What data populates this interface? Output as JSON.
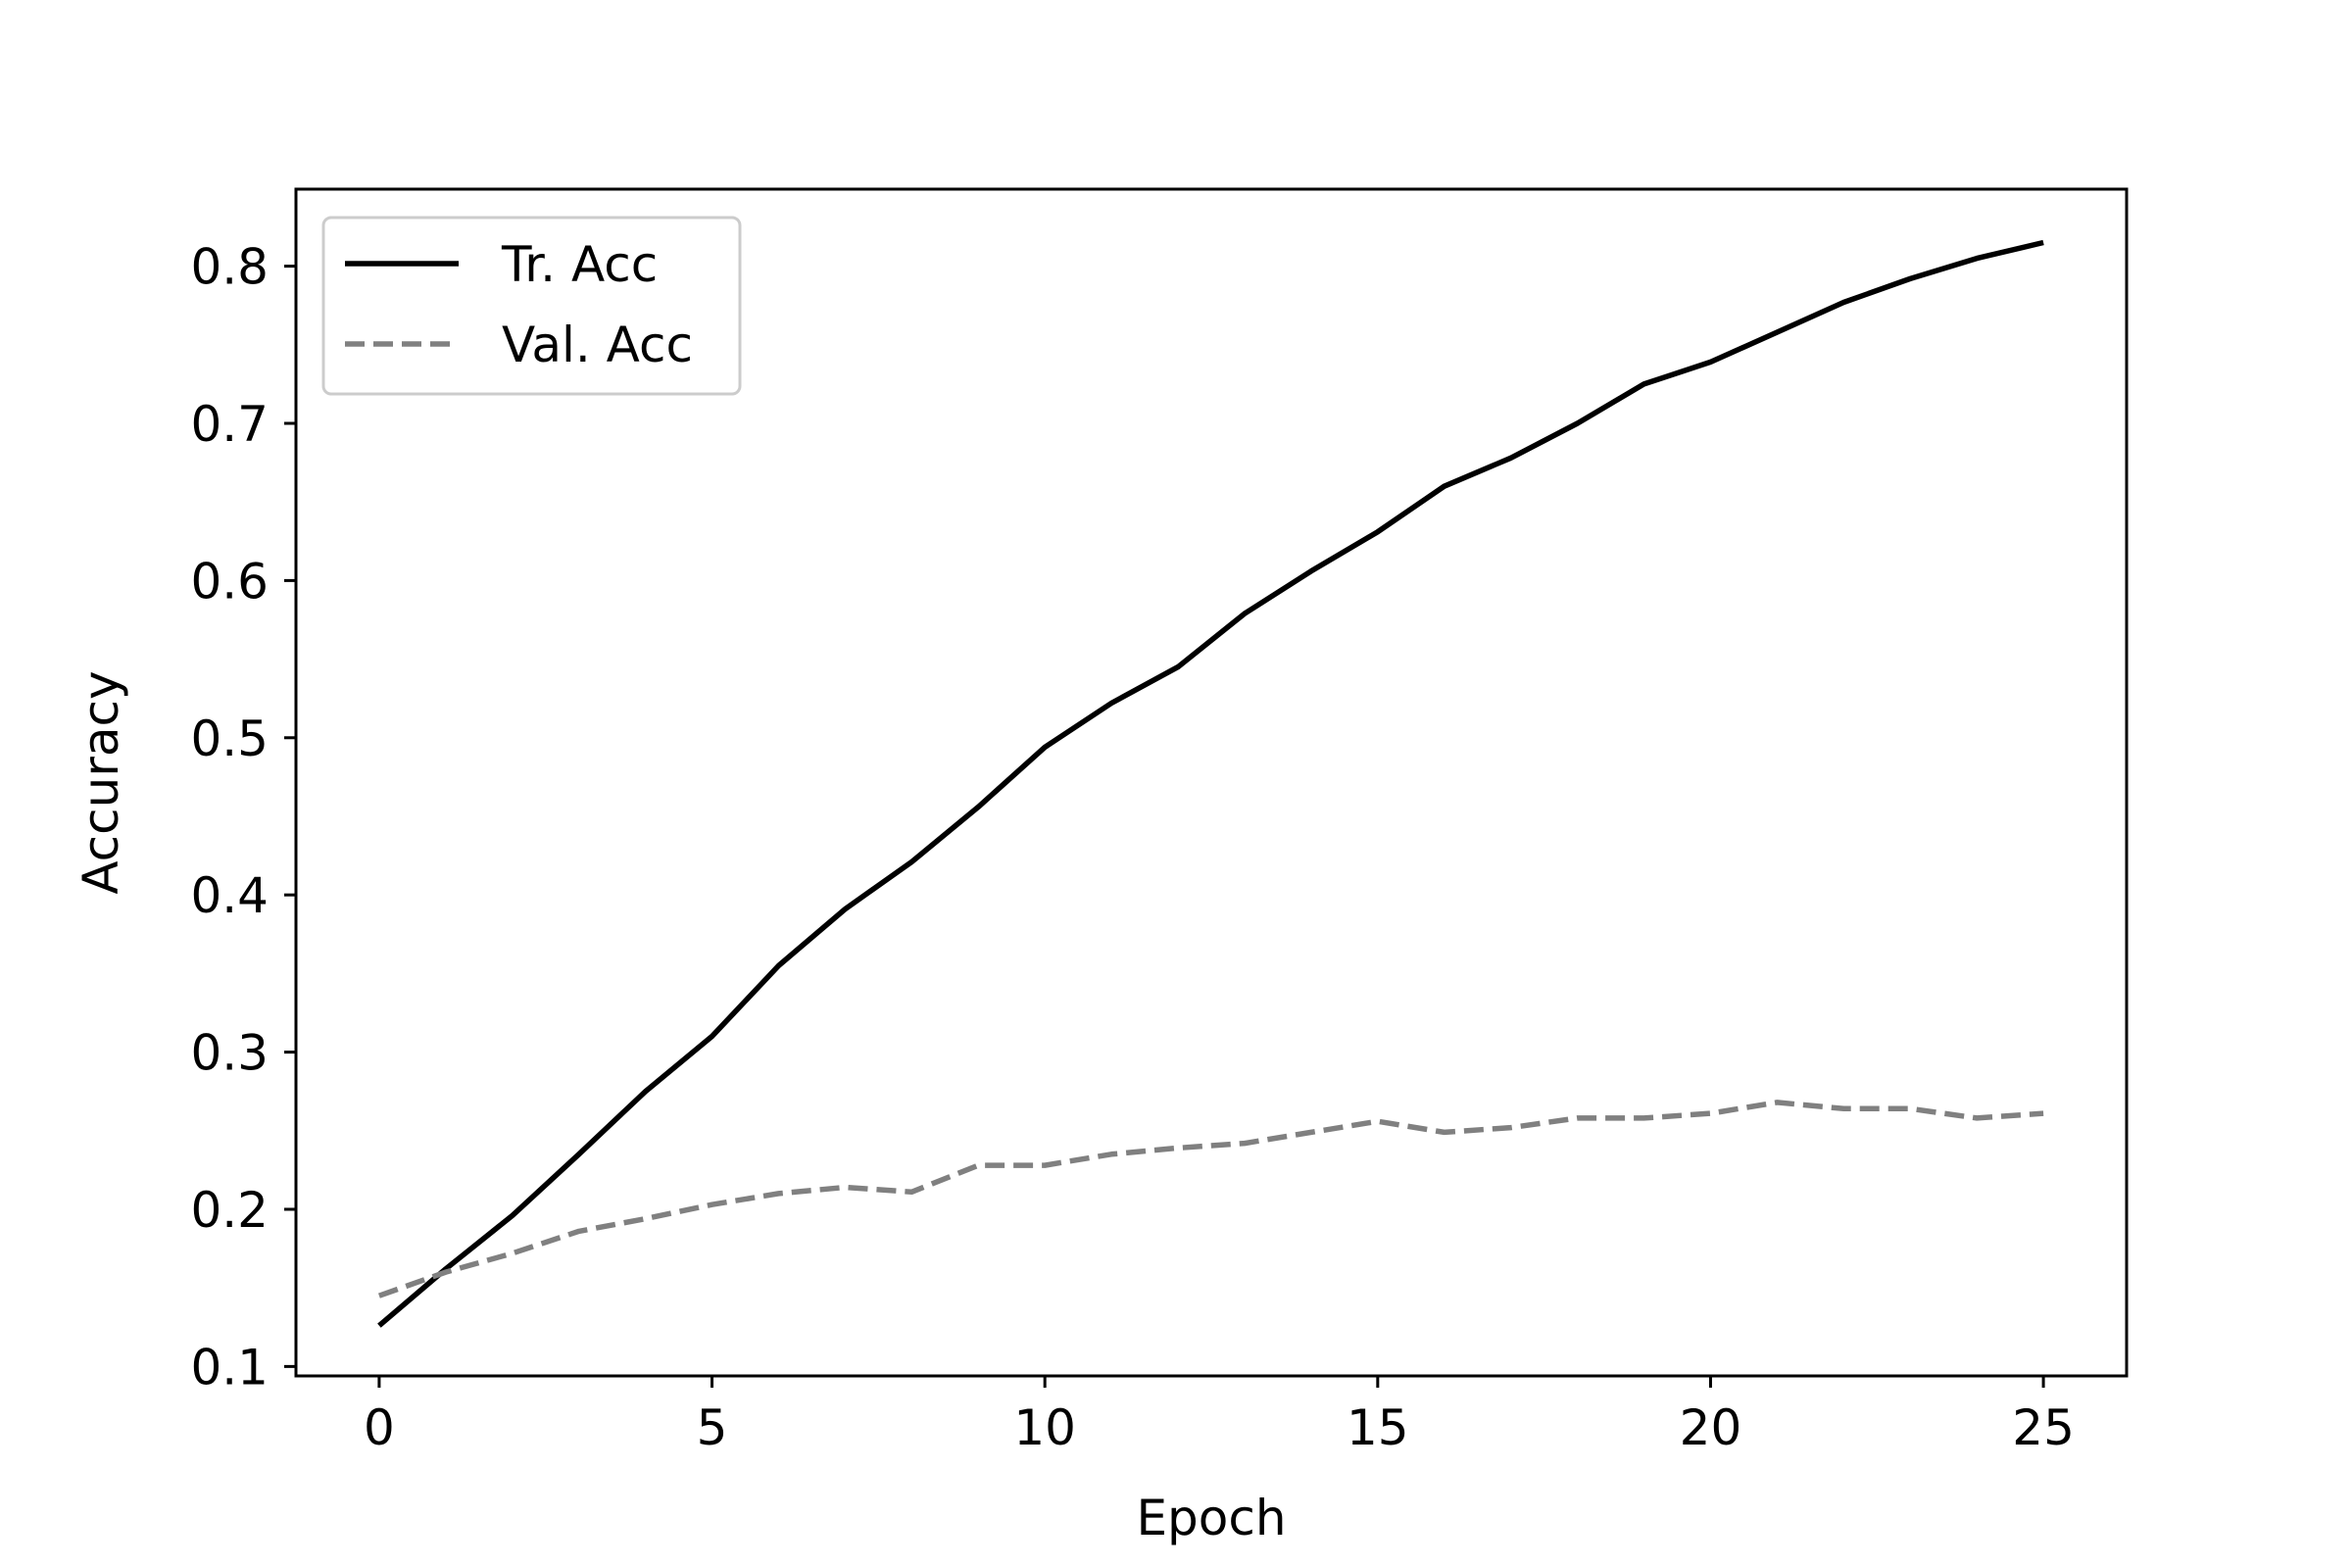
{
  "chart_data": {
    "type": "line",
    "title": "",
    "xlabel": "Epoch",
    "ylabel": "Accuracy",
    "xlim": [
      -1.25,
      26.25
    ],
    "ylim": [
      0.094,
      0.849
    ],
    "xticks": [
      0,
      5,
      10,
      15,
      20,
      25
    ],
    "yticks": [
      0.1,
      0.2,
      0.3,
      0.4,
      0.5,
      0.6,
      0.7,
      0.8
    ],
    "grid": false,
    "legend_position": "top-left",
    "x": [
      0,
      1,
      2,
      3,
      4,
      5,
      6,
      7,
      8,
      9,
      10,
      11,
      12,
      13,
      14,
      15,
      16,
      17,
      18,
      19,
      20,
      21,
      22,
      23,
      24,
      25
    ],
    "series": [
      {
        "name": "Tr. Acc",
        "color": "#000000",
        "style": "solid",
        "values": [
          0.126,
          0.162,
          0.196,
          0.235,
          0.275,
          0.31,
          0.355,
          0.391,
          0.421,
          0.456,
          0.494,
          0.522,
          0.545,
          0.579,
          0.606,
          0.631,
          0.66,
          0.678,
          0.7,
          0.725,
          0.739,
          0.758,
          0.777,
          0.792,
          0.805,
          0.815
        ]
      },
      {
        "name": "Val. Acc",
        "color": "#808080",
        "style": "dashed",
        "values": [
          0.145,
          0.16,
          0.172,
          0.186,
          0.194,
          0.203,
          0.21,
          0.214,
          0.211,
          0.228,
          0.228,
          0.235,
          0.239,
          0.242,
          0.249,
          0.256,
          0.249,
          0.252,
          0.258,
          0.258,
          0.261,
          0.268,
          0.264,
          0.264,
          0.258,
          0.261
        ]
      }
    ]
  }
}
